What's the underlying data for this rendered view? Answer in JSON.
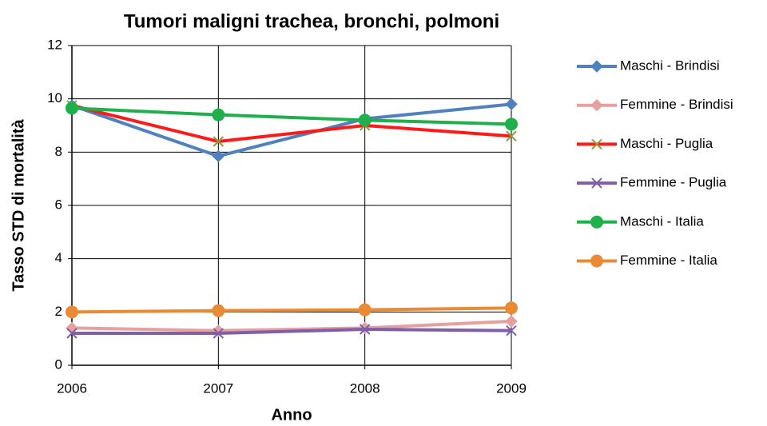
{
  "chart_data": {
    "type": "line",
    "title": "Tumori maligni trachea, bronchi, polmoni",
    "x_label": "Anno",
    "y_label": "Tasso STD di mortalità",
    "x": [
      2006,
      2007,
      2008,
      2009
    ],
    "xlim": [
      2006,
      2009
    ],
    "xticks": [
      2006,
      2007,
      2008,
      2009
    ],
    "ylim": [
      0,
      12
    ],
    "yticks": [
      0,
      2,
      4,
      6,
      8,
      10,
      12
    ],
    "grid": true,
    "legend": "right",
    "series": [
      {
        "name": "Maschi - Brindisi",
        "color": "#4f81bd",
        "marker": "diamond",
        "values": [
          9.75,
          7.85,
          9.25,
          9.8
        ]
      },
      {
        "name": "Femmine - Brindisi",
        "color": "#e6a0a0",
        "marker": "diamond",
        "values": [
          1.4,
          1.3,
          1.4,
          1.65
        ]
      },
      {
        "name": "Maschi - Puglia",
        "color": "#ff1a1a",
        "marker": "x",
        "marker_color": "#8f9a3a",
        "values": [
          9.75,
          8.4,
          9.0,
          8.6
        ]
      },
      {
        "name": "Femmine - Puglia",
        "color": "#7f5fa8",
        "marker": "x",
        "values": [
          1.2,
          1.2,
          1.35,
          1.3
        ]
      },
      {
        "name": "Maschi - Italia",
        "color": "#1fb04c",
        "marker": "circle",
        "values": [
          9.65,
          9.4,
          9.2,
          9.05
        ]
      },
      {
        "name": "Femmine - Italia",
        "color": "#ea8a35",
        "marker": "circle",
        "values": [
          2.0,
          2.05,
          2.08,
          2.15
        ]
      }
    ]
  }
}
